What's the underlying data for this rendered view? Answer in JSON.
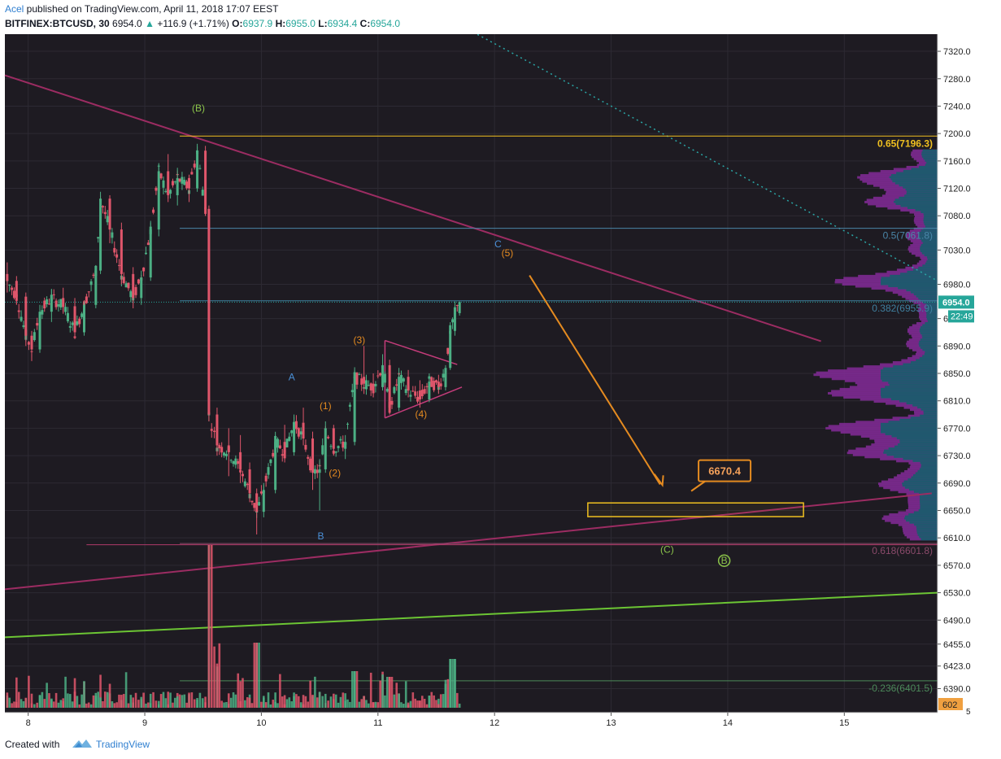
{
  "header": {
    "author": "Acel",
    "published": " published on TradingView.com, April 11, 2018 17:07 EEST",
    "symbol": "BITFINEX:BTCUSD, 30",
    "last": "6954.0",
    "change": "+116.9 (+1.71%)",
    "open_label": "O:",
    "open": "6937.9",
    "high_label": "H:",
    "high": "6955.0",
    "low_label": "L:",
    "low": "6934.4",
    "close_label": "C:",
    "close": "6954.0"
  },
  "footer": {
    "created_with": "Created with",
    "brand": "TradingView"
  },
  "colors": {
    "background": "#1e1b22",
    "up": "#4caf84",
    "down": "#e0566b",
    "grid": "#2d2a33",
    "yellow": "#f0c020",
    "orange": "#e58b20",
    "magenta_line": "#9c2c62",
    "green_line": "#6cc534",
    "profile_teal": "#175d6b",
    "profile_purple": "#7c2a90"
  },
  "chart_data": {
    "type": "candlestick",
    "title": "",
    "x_axis": {
      "ticks": [
        "8",
        "9",
        "10",
        "11",
        "12",
        "13",
        "14",
        "15"
      ],
      "tick_values": [
        8,
        9,
        10,
        11,
        12,
        13,
        14,
        15
      ],
      "range": [
        7.8,
        15.8
      ]
    },
    "y_axis": {
      "ticks": [
        "7320.0",
        "7280.0",
        "7240.0",
        "7200.0",
        "7160.0",
        "7120.0",
        "7080.0",
        "7030.0",
        "6980.0",
        "6930.0",
        "6890.0",
        "6850.0",
        "6810.0",
        "6770.0",
        "6730.0",
        "6690.0",
        "6650.0",
        "6610.0",
        "6570.0",
        "6530.0",
        "6490.0",
        "6455.0",
        "6423.0",
        "6390.0"
      ],
      "tick_values": [
        7320,
        7280,
        7240,
        7200,
        7160,
        7120,
        7080,
        7030,
        6980,
        6930,
        6890,
        6850,
        6810,
        6770,
        6730,
        6690,
        6650,
        6610,
        6570,
        6530,
        6490,
        6455,
        6423,
        6390
      ],
      "range": [
        6355,
        7345
      ],
      "position": "right"
    },
    "last_price": {
      "value": 6954.0,
      "label": "6954.0",
      "countdown": "22:49"
    },
    "volume_last": {
      "label": "602",
      "bottom_tick": "5"
    },
    "ohlc_anchors": [
      {
        "x": 7.82,
        "o": 6995,
        "h": 7012,
        "l": 6968,
        "c": 6985
      },
      {
        "x": 7.9,
        "o": 6985,
        "h": 6992,
        "l": 6950,
        "c": 6962
      },
      {
        "x": 7.98,
        "o": 6962,
        "h": 6968,
        "l": 6890,
        "c": 6905
      },
      {
        "x": 8.03,
        "o": 6905,
        "h": 6912,
        "l": 6868,
        "c": 6885
      },
      {
        "x": 8.1,
        "o": 6885,
        "h": 6950,
        "l": 6880,
        "c": 6940
      },
      {
        "x": 8.2,
        "o": 6940,
        "h": 6972,
        "l": 6925,
        "c": 6960
      },
      {
        "x": 8.3,
        "o": 6960,
        "h": 6975,
        "l": 6940,
        "c": 6948
      },
      {
        "x": 8.4,
        "o": 6948,
        "h": 6960,
        "l": 6900,
        "c": 6910
      },
      {
        "x": 8.48,
        "o": 6910,
        "h": 6955,
        "l": 6905,
        "c": 6950
      },
      {
        "x": 8.58,
        "o": 6950,
        "h": 7008,
        "l": 6945,
        "c": 7000
      },
      {
        "x": 8.62,
        "o": 7000,
        "h": 7115,
        "l": 6995,
        "c": 7105
      },
      {
        "x": 8.7,
        "o": 7105,
        "h": 7110,
        "l": 7040,
        "c": 7060
      },
      {
        "x": 8.8,
        "o": 7060,
        "h": 7070,
        "l": 6980,
        "c": 6995
      },
      {
        "x": 8.9,
        "o": 6995,
        "h": 7005,
        "l": 6945,
        "c": 6960
      },
      {
        "x": 8.97,
        "o": 6960,
        "h": 7000,
        "l": 6950,
        "c": 6990
      },
      {
        "x": 9.05,
        "o": 6990,
        "h": 7070,
        "l": 6985,
        "c": 7060
      },
      {
        "x": 9.12,
        "o": 7060,
        "h": 7155,
        "l": 7050,
        "c": 7145
      },
      {
        "x": 9.2,
        "o": 7145,
        "h": 7170,
        "l": 7100,
        "c": 7110
      },
      {
        "x": 9.28,
        "o": 7110,
        "h": 7150,
        "l": 7095,
        "c": 7135
      },
      {
        "x": 9.38,
        "o": 7135,
        "h": 7140,
        "l": 7100,
        "c": 7120
      },
      {
        "x": 9.45,
        "o": 7120,
        "h": 7185,
        "l": 7115,
        "c": 7175
      },
      {
        "x": 9.52,
        "o": 7175,
        "h": 7182,
        "l": 7080,
        "c": 7090
      },
      {
        "x": 9.55,
        "o": 7090,
        "h": 7095,
        "l": 6780,
        "c": 6790
      },
      {
        "x": 9.62,
        "o": 6790,
        "h": 6800,
        "l": 6730,
        "c": 6745
      },
      {
        "x": 9.72,
        "o": 6745,
        "h": 6770,
        "l": 6700,
        "c": 6735
      },
      {
        "x": 9.82,
        "o": 6735,
        "h": 6760,
        "l": 6690,
        "c": 6710
      },
      {
        "x": 9.9,
        "o": 6710,
        "h": 6720,
        "l": 6662,
        "c": 6675
      },
      {
        "x": 9.96,
        "o": 6675,
        "h": 6682,
        "l": 6615,
        "c": 6648
      },
      {
        "x": 10.02,
        "o": 6648,
        "h": 6690,
        "l": 6640,
        "c": 6680
      },
      {
        "x": 10.12,
        "o": 6680,
        "h": 6760,
        "l": 6675,
        "c": 6750
      },
      {
        "x": 10.2,
        "o": 6750,
        "h": 6775,
        "l": 6720,
        "c": 6735
      },
      {
        "x": 10.28,
        "o": 6735,
        "h": 6790,
        "l": 6730,
        "c": 6778
      },
      {
        "x": 10.36,
        "o": 6778,
        "h": 6800,
        "l": 6745,
        "c": 6755
      },
      {
        "x": 10.44,
        "o": 6755,
        "h": 6765,
        "l": 6680,
        "c": 6705
      },
      {
        "x": 10.5,
        "o": 6705,
        "h": 6725,
        "l": 6650,
        "c": 6710
      },
      {
        "x": 10.55,
        "o": 6710,
        "h": 6780,
        "l": 6705,
        "c": 6770
      },
      {
        "x": 10.62,
        "o": 6770,
        "h": 6775,
        "l": 6730,
        "c": 6740
      },
      {
        "x": 10.72,
        "o": 6740,
        "h": 6760,
        "l": 6725,
        "c": 6750
      },
      {
        "x": 10.8,
        "o": 6750,
        "h": 6855,
        "l": 6745,
        "c": 6845
      },
      {
        "x": 10.88,
        "o": 6845,
        "h": 6890,
        "l": 6820,
        "c": 6835
      },
      {
        "x": 10.96,
        "o": 6835,
        "h": 6850,
        "l": 6815,
        "c": 6830
      },
      {
        "x": 11.04,
        "o": 6830,
        "h": 6878,
        "l": 6825,
        "c": 6862
      },
      {
        "x": 11.1,
        "o": 6862,
        "h": 6870,
        "l": 6790,
        "c": 6800
      },
      {
        "x": 11.18,
        "o": 6800,
        "h": 6858,
        "l": 6795,
        "c": 6845
      },
      {
        "x": 11.26,
        "o": 6845,
        "h": 6855,
        "l": 6815,
        "c": 6825
      },
      {
        "x": 11.36,
        "o": 6825,
        "h": 6840,
        "l": 6800,
        "c": 6812
      },
      {
        "x": 11.44,
        "o": 6812,
        "h": 6850,
        "l": 6808,
        "c": 6838
      },
      {
        "x": 11.52,
        "o": 6838,
        "h": 6848,
        "l": 6820,
        "c": 6830
      },
      {
        "x": 11.58,
        "o": 6830,
        "h": 6862,
        "l": 6825,
        "c": 6858
      },
      {
        "x": 11.62,
        "o": 6858,
        "h": 6920,
        "l": 6855,
        "c": 6912
      },
      {
        "x": 11.66,
        "o": 6912,
        "h": 6940,
        "l": 6905,
        "c": 6937.9
      },
      {
        "x": 11.7,
        "o": 6937.9,
        "h": 6955,
        "l": 6934.4,
        "c": 6954
      }
    ],
    "horizontal_levels": [
      {
        "label": "0.65(7196.3)",
        "value": 7196.3,
        "color": "#f0c020"
      },
      {
        "label": "0.5(7061.8)",
        "value": 7061.8,
        "color": "#4a86a8"
      },
      {
        "label": "0.382(6955.9)",
        "value": 6955.9,
        "color": "#3f7f9e"
      },
      {
        "label": "0.618(6601.8)",
        "value": 6601.8,
        "color": "#8a4a6a"
      },
      {
        "label": "-0.236(6401.5)",
        "value": 6401.5,
        "color": "#4c8a5a"
      }
    ],
    "target_box": {
      "value_top": 6661,
      "value_bottom": 6641,
      "x_start": 12.8,
      "x_end": 14.65,
      "callout": "6670.4"
    },
    "wave_labels": [
      {
        "text": "(B)",
        "x": 9.46,
        "y": 7232,
        "color": "#8bc34a"
      },
      {
        "text": "A",
        "x": 10.26,
        "y": 6840,
        "color": "#4a8fd6"
      },
      {
        "text": "B",
        "x": 10.51,
        "y": 6608,
        "color": "#4a8fd6"
      },
      {
        "text": "(1)",
        "x": 10.55,
        "y": 6798,
        "color": "#e58b20"
      },
      {
        "text": "(2)",
        "x": 10.63,
        "y": 6700,
        "color": "#e58b20"
      },
      {
        "text": "(3)",
        "x": 10.84,
        "y": 6894,
        "color": "#e58b20"
      },
      {
        "text": "(4)",
        "x": 11.37,
        "y": 6786,
        "color": "#e58b20"
      },
      {
        "text": "C",
        "x": 12.03,
        "y": 7034,
        "color": "#4a8fd6"
      },
      {
        "text": "(5)",
        "x": 12.11,
        "y": 7021,
        "color": "#e58b20"
      },
      {
        "text": "(C)",
        "x": 13.48,
        "y": 6588,
        "color": "#8bc34a"
      },
      {
        "text": "B",
        "x": 13.97,
        "y": 6572,
        "color": "#8bc34a",
        "circled": true
      }
    ]
  }
}
